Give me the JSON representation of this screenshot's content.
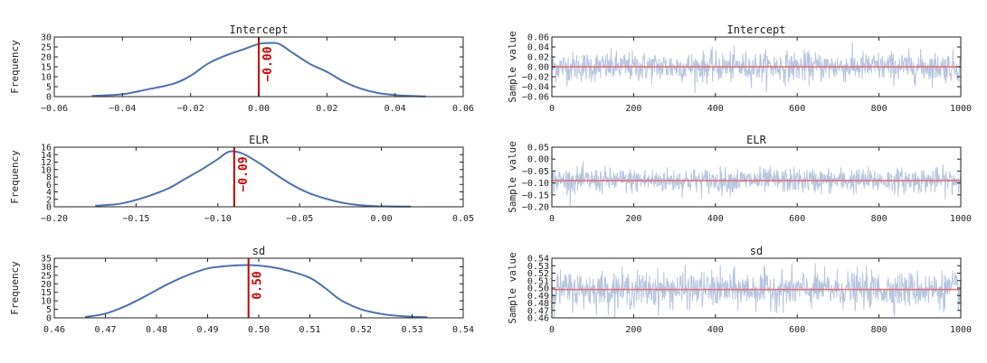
{
  "colors": {
    "density": "#4c72b0",
    "trace": "#b7c5df",
    "mean_line": "#cc0000",
    "trace_mean": "#e06c75",
    "axis": "#222222"
  },
  "chart_data": [
    {
      "id": "intercept-density",
      "type": "line",
      "title": "Intercept",
      "xlabel": "",
      "ylabel": "Frequency",
      "xlim": [
        -0.06,
        0.06
      ],
      "ylim": [
        0,
        30
      ],
      "xticks": [
        -0.06,
        -0.04,
        -0.02,
        0.0,
        0.02,
        0.04,
        0.06
      ],
      "xtick_labels": [
        "−0.06",
        "−0.04",
        "−0.02",
        "0.00",
        "0.02",
        "0.04",
        "0.06"
      ],
      "yticks": [
        0,
        5,
        10,
        15,
        20,
        25,
        30
      ],
      "ytick_labels": [
        "0",
        "5",
        "10",
        "15",
        "20",
        "25",
        "30"
      ],
      "x": [
        -0.049,
        -0.04,
        -0.033,
        -0.025,
        -0.02,
        -0.015,
        -0.01,
        -0.005,
        0.0,
        0.003,
        0.006,
        0.01,
        0.015,
        0.02,
        0.025,
        0.03,
        0.035,
        0.04,
        0.045,
        0.049
      ],
      "y": [
        0.3,
        1.2,
        3.5,
        6.5,
        10.5,
        16.5,
        20.5,
        23.5,
        26.5,
        27.0,
        26.5,
        22.0,
        16.5,
        12.5,
        7.5,
        4.0,
        1.8,
        0.8,
        0.3,
        0.1
      ],
      "mean": 0.0,
      "annotation": "−0.00"
    },
    {
      "id": "intercept-trace",
      "type": "line",
      "title": "Intercept",
      "xlabel": "",
      "ylabel": "Sample value",
      "xlim": [
        0,
        1000
      ],
      "ylim": [
        -0.06,
        0.06
      ],
      "xticks": [
        0,
        200,
        400,
        600,
        800,
        1000
      ],
      "xtick_labels": [
        "0",
        "200",
        "400",
        "600",
        "800",
        "1000"
      ],
      "yticks": [
        -0.06,
        -0.04,
        -0.02,
        0.0,
        0.02,
        0.04,
        0.06
      ],
      "ytick_labels": [
        "−0.06",
        "−0.04",
        "−0.02",
        "0.00",
        "0.02",
        "0.04",
        "0.06"
      ],
      "n_samples": 1000,
      "center": 0.0,
      "spread": 0.015,
      "mean": 0.0
    },
    {
      "id": "elr-density",
      "type": "line",
      "title": "ELR",
      "xlabel": "",
      "ylabel": "Frequency",
      "xlim": [
        -0.2,
        0.05
      ],
      "ylim": [
        0,
        16
      ],
      "xticks": [
        -0.2,
        -0.15,
        -0.1,
        -0.05,
        0.0,
        0.05
      ],
      "xtick_labels": [
        "−0.20",
        "−0.15",
        "−0.10",
        "−0.05",
        "0.00",
        "0.05"
      ],
      "yticks": [
        0,
        2,
        4,
        6,
        8,
        10,
        12,
        14,
        16
      ],
      "ytick_labels": [
        "0",
        "2",
        "4",
        "6",
        "8",
        "10",
        "12",
        "14",
        "16"
      ],
      "x": [
        -0.175,
        -0.16,
        -0.145,
        -0.13,
        -0.12,
        -0.11,
        -0.1,
        -0.093,
        -0.085,
        -0.075,
        -0.065,
        -0.055,
        -0.045,
        -0.035,
        -0.025,
        -0.015,
        -0.005,
        0.005,
        0.018
      ],
      "y": [
        0.3,
        0.8,
        2.5,
        5.0,
        7.5,
        10.0,
        12.8,
        14.8,
        14.3,
        11.8,
        8.8,
        6.0,
        3.8,
        2.3,
        1.2,
        0.5,
        0.2,
        0.1,
        0.05
      ],
      "mean": -0.09,
      "annotation": "−0.09"
    },
    {
      "id": "elr-trace",
      "type": "line",
      "title": "ELR",
      "xlabel": "",
      "ylabel": "Sample value",
      "xlim": [
        0,
        1000
      ],
      "ylim": [
        -0.2,
        0.05
      ],
      "xticks": [
        0,
        200,
        400,
        600,
        800,
        1000
      ],
      "xtick_labels": [
        "0",
        "200",
        "400",
        "600",
        "800",
        "1000"
      ],
      "yticks": [
        -0.2,
        -0.15,
        -0.1,
        -0.05,
        0.0,
        0.05
      ],
      "ytick_labels": [
        "−0.20",
        "−0.15",
        "−0.10",
        "−0.05",
        "0.00",
        "0.05"
      ],
      "n_samples": 1000,
      "center": -0.09,
      "spread": 0.026,
      "mean": -0.09
    },
    {
      "id": "sd-density",
      "type": "line",
      "title": "sd",
      "xlabel": "",
      "ylabel": "Frequency",
      "xlim": [
        0.46,
        0.54
      ],
      "ylim": [
        0,
        35
      ],
      "xticks": [
        0.46,
        0.47,
        0.48,
        0.49,
        0.5,
        0.51,
        0.52,
        0.53,
        0.54
      ],
      "xtick_labels": [
        "0.46",
        "0.47",
        "0.48",
        "0.49",
        "0.50",
        "0.51",
        "0.52",
        "0.53",
        "0.54"
      ],
      "yticks": [
        0,
        5,
        10,
        15,
        20,
        25,
        30,
        35
      ],
      "ytick_labels": [
        "0",
        "5",
        "10",
        "15",
        "20",
        "25",
        "30",
        "35"
      ],
      "x": [
        0.466,
        0.47,
        0.474,
        0.478,
        0.482,
        0.486,
        0.49,
        0.494,
        0.498,
        0.502,
        0.506,
        0.51,
        0.513,
        0.516,
        0.52,
        0.524,
        0.528,
        0.533
      ],
      "y": [
        0.5,
        2.5,
        7.0,
        13.0,
        19.5,
        25.0,
        29.0,
        30.5,
        31.0,
        30.0,
        27.5,
        23.5,
        17.5,
        10.5,
        5.0,
        2.3,
        1.0,
        0.3
      ],
      "mean": 0.498,
      "annotation": "0.50"
    },
    {
      "id": "sd-trace",
      "type": "line",
      "title": "sd",
      "xlabel": "",
      "ylabel": "Sample value",
      "xlim": [
        0,
        1000
      ],
      "ylim": [
        0.46,
        0.54
      ],
      "xticks": [
        0,
        200,
        400,
        600,
        800,
        1000
      ],
      "xtick_labels": [
        "0",
        "200",
        "400",
        "600",
        "800",
        "1000"
      ],
      "yticks": [
        0.46,
        0.47,
        0.48,
        0.49,
        0.5,
        0.51,
        0.52,
        0.53,
        0.54
      ],
      "ytick_labels": [
        "0.46",
        "0.47",
        "0.48",
        "0.49",
        "0.50",
        "0.51",
        "0.52",
        "0.53",
        "0.54"
      ],
      "n_samples": 1000,
      "center": 0.498,
      "spread": 0.012,
      "mean": 0.498
    }
  ]
}
